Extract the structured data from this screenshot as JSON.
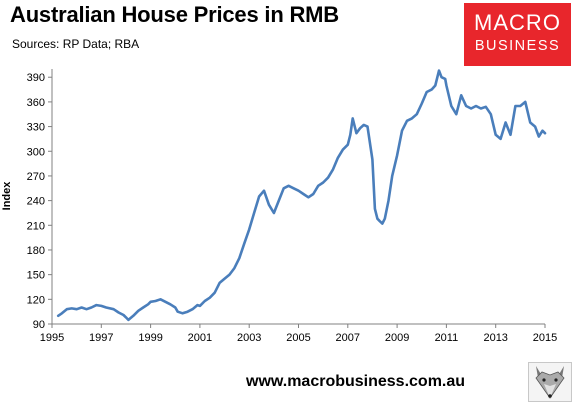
{
  "header": {
    "title": "Australian House Prices in RMB",
    "subtitle": "Sources: RP Data; RBA"
  },
  "logo": {
    "line1": "MACRO",
    "line2": "BUSINESS",
    "color": "#e8262c"
  },
  "footer": {
    "url": "www.macrobusiness.com.au",
    "mascot_icon": "fox-head-icon"
  },
  "chart_data": {
    "type": "line",
    "title": "Australian House Prices in RMB",
    "subtitle": "Sources: RP Data; RBA",
    "xlabel": "",
    "ylabel": "Index",
    "xlim": [
      1995,
      2015
    ],
    "ylim": [
      90,
      400
    ],
    "x_ticks": [
      "1995",
      "1997",
      "1999",
      "2001",
      "2003",
      "2005",
      "2007",
      "2009",
      "2011",
      "2013",
      "2015"
    ],
    "y_ticks": [
      "90",
      "120",
      "150",
      "180",
      "210",
      "240",
      "270",
      "300",
      "330",
      "360",
      "390"
    ],
    "grid": false,
    "legend": "none",
    "series_color": "#4a7ebb",
    "series": [
      {
        "x": [
          1995.25,
          1995.4,
          1995.6,
          1995.8,
          1996.0,
          1996.2,
          1996.4,
          1996.6,
          1996.8,
          1997.0,
          1997.2,
          1997.5,
          1997.7,
          1997.9,
          1998.0,
          1998.1,
          1998.3,
          1998.5,
          1998.7,
          1998.9,
          1999.0,
          1999.2,
          1999.4,
          1999.6,
          1999.8,
          2000.0,
          2000.1,
          2000.3,
          2000.5,
          2000.7,
          2000.9,
          2001.0,
          2001.2,
          2001.4,
          2001.6,
          2001.8,
          2002.0,
          2002.2,
          2002.4,
          2002.6,
          2002.8,
          2003.0,
          2003.2,
          2003.4,
          2003.6,
          2003.8,
          2004.0,
          2004.2,
          2004.4,
          2004.6,
          2004.8,
          2005.0,
          2005.2,
          2005.4,
          2005.6,
          2005.8,
          2006.0,
          2006.2,
          2006.4,
          2006.6,
          2006.8,
          2007.0,
          2007.1,
          2007.2,
          2007.35,
          2007.5,
          2007.65,
          2007.8,
          2008.0,
          2008.1,
          2008.2,
          2008.3,
          2008.4,
          2008.5,
          2008.65,
          2008.8,
          2009.0,
          2009.2,
          2009.4,
          2009.6,
          2009.8,
          2010.0,
          2010.2,
          2010.4,
          2010.55,
          2010.7,
          2010.8,
          2010.95,
          2011.0,
          2011.2,
          2011.4,
          2011.6,
          2011.8,
          2012.0,
          2012.2,
          2012.4,
          2012.6,
          2012.8,
          2013.0,
          2013.2,
          2013.4,
          2013.6,
          2013.8,
          2014.0,
          2014.2,
          2014.4,
          2014.6,
          2014.75,
          2014.9,
          2015.0
        ],
        "y": [
          100,
          103,
          108,
          109,
          108,
          110,
          108,
          110,
          113,
          112,
          110,
          108,
          104,
          101,
          98,
          95,
          100,
          106,
          110,
          114,
          117,
          118,
          120,
          117,
          114,
          110,
          105,
          103,
          105,
          108,
          113,
          112,
          118,
          122,
          128,
          140,
          145,
          150,
          158,
          170,
          188,
          205,
          225,
          245,
          252,
          235,
          225,
          240,
          255,
          258,
          255,
          252,
          248,
          244,
          248,
          258,
          262,
          268,
          278,
          292,
          302,
          308,
          320,
          340,
          322,
          328,
          332,
          330,
          290,
          230,
          218,
          215,
          212,
          218,
          240,
          270,
          295,
          325,
          337,
          340,
          345,
          358,
          372,
          375,
          380,
          398,
          390,
          388,
          380,
          355,
          345,
          368,
          355,
          352,
          355,
          352,
          354,
          345,
          320,
          315,
          335,
          320,
          355,
          355,
          360,
          335,
          330,
          318,
          325,
          322
        ]
      }
    ]
  }
}
